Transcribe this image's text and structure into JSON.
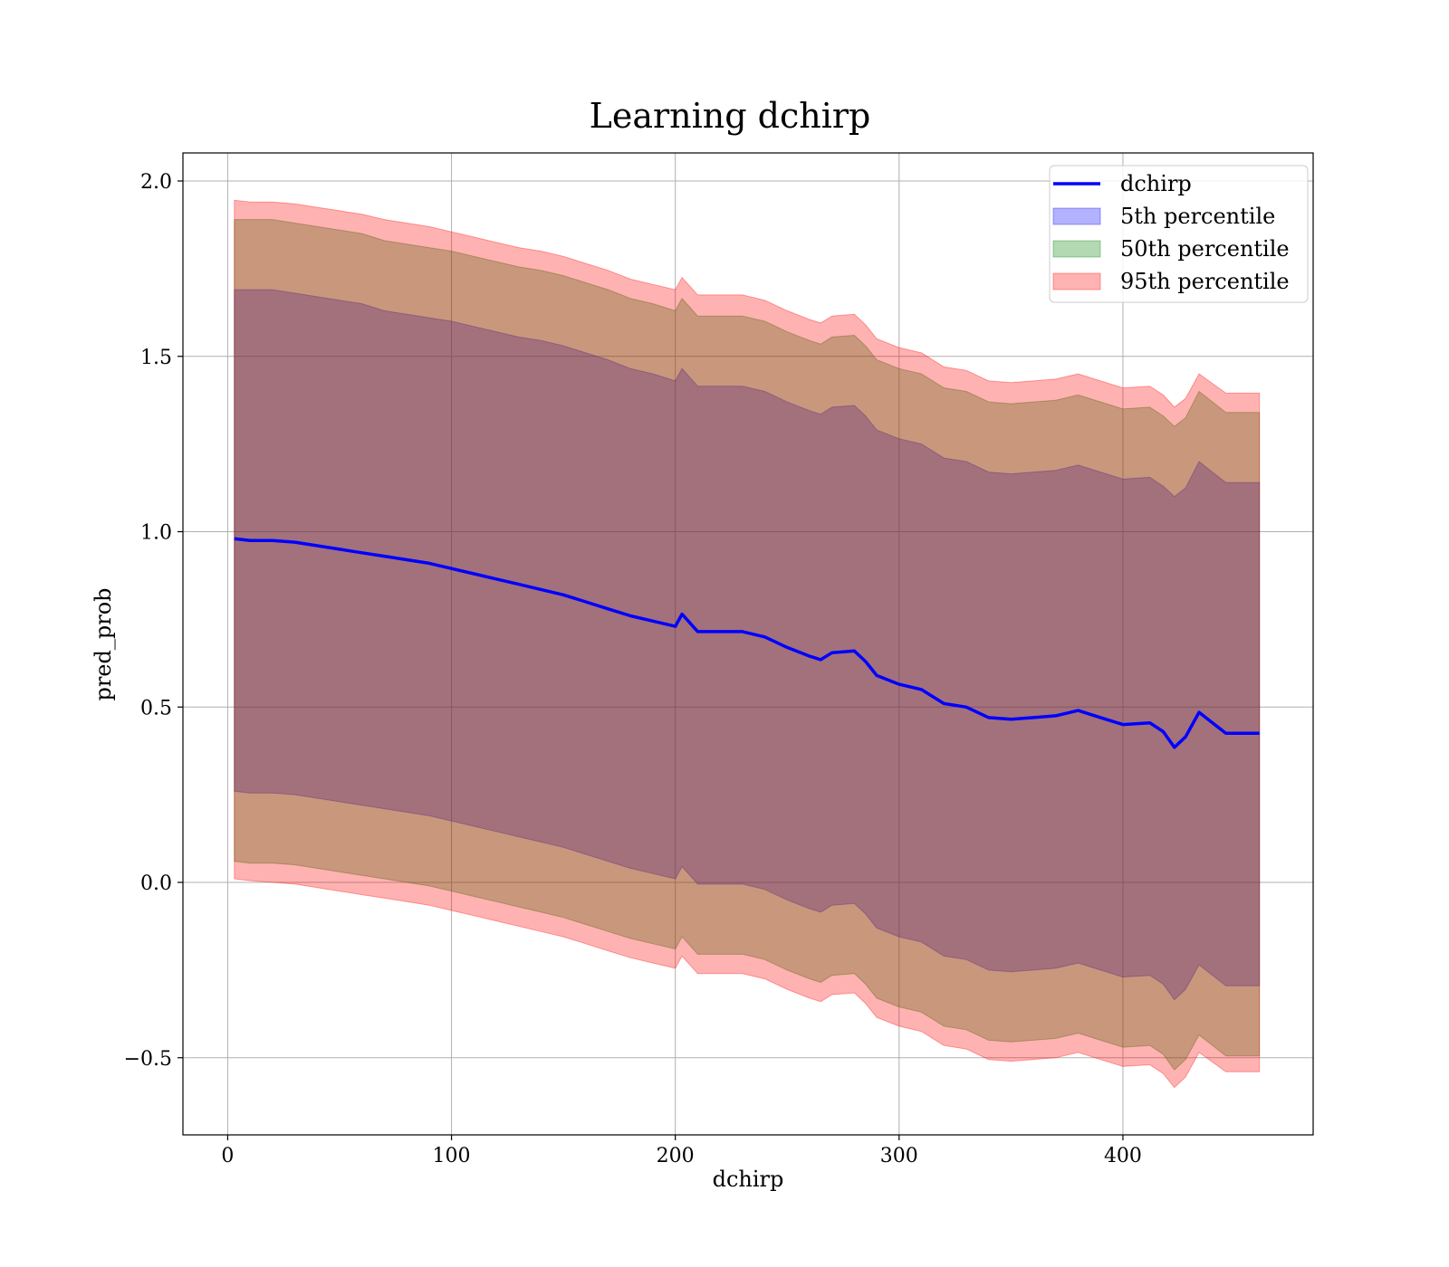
{
  "chart_data": {
    "type": "line",
    "title": "Learning dchirp",
    "xlabel": "dchirp",
    "ylabel": "pred_prob",
    "xlim": [
      -20,
      485
    ],
    "ylim": [
      -0.72,
      2.08
    ],
    "xticks": [
      0,
      100,
      200,
      300,
      400
    ],
    "xtick_labels": [
      "0",
      "100",
      "200",
      "300",
      "400"
    ],
    "yticks": [
      -0.5,
      0.0,
      0.5,
      1.0,
      1.5,
      2.0
    ],
    "ytick_labels": [
      "−0.5",
      "0.0",
      "0.5",
      "1.0",
      "1.5",
      "2.0"
    ],
    "grid": true,
    "legend_position": "top-right",
    "x": [
      3,
      10,
      20,
      30,
      40,
      50,
      60,
      70,
      80,
      90,
      100,
      110,
      120,
      130,
      140,
      150,
      160,
      170,
      180,
      190,
      200,
      203,
      210,
      220,
      230,
      240,
      250,
      260,
      265,
      270,
      280,
      285,
      290,
      300,
      310,
      320,
      330,
      340,
      350,
      360,
      370,
      380,
      390,
      400,
      412,
      418,
      423,
      428,
      434,
      446,
      461
    ],
    "series": [
      {
        "name": "dchirp",
        "kind": "line",
        "color": "#0000ff",
        "values": [
          0.98,
          0.975,
          0.975,
          0.97,
          0.96,
          0.95,
          0.94,
          0.93,
          0.92,
          0.91,
          0.895,
          0.88,
          0.865,
          0.85,
          0.835,
          0.82,
          0.8,
          0.78,
          0.76,
          0.745,
          0.73,
          0.765,
          0.715,
          0.715,
          0.715,
          0.7,
          0.67,
          0.645,
          0.635,
          0.655,
          0.66,
          0.63,
          0.59,
          0.565,
          0.55,
          0.51,
          0.5,
          0.47,
          0.465,
          0.47,
          0.475,
          0.49,
          0.47,
          0.45,
          0.455,
          0.43,
          0.385,
          0.415,
          0.485,
          0.425,
          0.425
        ]
      },
      {
        "name": "5th percentile",
        "kind": "band",
        "color": "#0000ff",
        "opacity": 0.3,
        "upper": [
          1.69,
          1.69,
          1.69,
          1.68,
          1.67,
          1.66,
          1.65,
          1.63,
          1.62,
          1.61,
          1.6,
          1.585,
          1.57,
          1.555,
          1.545,
          1.53,
          1.51,
          1.49,
          1.465,
          1.45,
          1.43,
          1.465,
          1.415,
          1.415,
          1.415,
          1.4,
          1.37,
          1.345,
          1.335,
          1.355,
          1.36,
          1.33,
          1.29,
          1.265,
          1.25,
          1.21,
          1.2,
          1.17,
          1.165,
          1.17,
          1.175,
          1.19,
          1.17,
          1.15,
          1.155,
          1.13,
          1.1,
          1.125,
          1.2,
          1.14,
          1.14
        ],
        "lower": [
          0.26,
          0.255,
          0.255,
          0.25,
          0.24,
          0.23,
          0.22,
          0.21,
          0.2,
          0.19,
          0.175,
          0.16,
          0.145,
          0.13,
          0.115,
          0.1,
          0.08,
          0.06,
          0.04,
          0.025,
          0.01,
          0.045,
          -0.005,
          -0.005,
          -0.005,
          -0.02,
          -0.05,
          -0.075,
          -0.085,
          -0.065,
          -0.06,
          -0.09,
          -0.13,
          -0.155,
          -0.17,
          -0.21,
          -0.22,
          -0.25,
          -0.255,
          -0.25,
          -0.245,
          -0.23,
          -0.25,
          -0.27,
          -0.265,
          -0.29,
          -0.335,
          -0.305,
          -0.235,
          -0.295,
          -0.295
        ]
      },
      {
        "name": "50th percentile",
        "kind": "band",
        "color": "#008000",
        "opacity": 0.3,
        "upper": [
          1.89,
          1.89,
          1.89,
          1.88,
          1.87,
          1.86,
          1.85,
          1.83,
          1.82,
          1.81,
          1.8,
          1.785,
          1.77,
          1.755,
          1.745,
          1.73,
          1.71,
          1.69,
          1.665,
          1.65,
          1.63,
          1.665,
          1.615,
          1.615,
          1.615,
          1.6,
          1.57,
          1.545,
          1.535,
          1.555,
          1.56,
          1.53,
          1.49,
          1.465,
          1.45,
          1.41,
          1.4,
          1.37,
          1.365,
          1.37,
          1.375,
          1.39,
          1.37,
          1.35,
          1.355,
          1.33,
          1.3,
          1.325,
          1.4,
          1.34,
          1.34
        ],
        "lower": [
          0.06,
          0.055,
          0.055,
          0.05,
          0.04,
          0.03,
          0.02,
          0.01,
          0.0,
          -0.01,
          -0.025,
          -0.04,
          -0.055,
          -0.07,
          -0.085,
          -0.1,
          -0.12,
          -0.14,
          -0.16,
          -0.175,
          -0.19,
          -0.155,
          -0.205,
          -0.205,
          -0.205,
          -0.22,
          -0.25,
          -0.275,
          -0.285,
          -0.265,
          -0.26,
          -0.29,
          -0.33,
          -0.355,
          -0.37,
          -0.41,
          -0.42,
          -0.45,
          -0.455,
          -0.45,
          -0.445,
          -0.43,
          -0.45,
          -0.47,
          -0.465,
          -0.49,
          -0.535,
          -0.505,
          -0.435,
          -0.495,
          -0.495
        ]
      },
      {
        "name": "95th percentile",
        "kind": "band",
        "color": "#ff0000",
        "opacity": 0.3,
        "upper": [
          1.945,
          1.94,
          1.94,
          1.935,
          1.925,
          1.915,
          1.905,
          1.89,
          1.88,
          1.87,
          1.855,
          1.84,
          1.825,
          1.81,
          1.8,
          1.785,
          1.765,
          1.745,
          1.72,
          1.705,
          1.69,
          1.725,
          1.675,
          1.675,
          1.675,
          1.66,
          1.63,
          1.605,
          1.595,
          1.615,
          1.62,
          1.59,
          1.55,
          1.525,
          1.51,
          1.47,
          1.46,
          1.43,
          1.425,
          1.43,
          1.435,
          1.45,
          1.43,
          1.41,
          1.415,
          1.39,
          1.355,
          1.38,
          1.45,
          1.395,
          1.395
        ],
        "lower": [
          0.01,
          0.005,
          0.0,
          -0.005,
          -0.015,
          -0.025,
          -0.035,
          -0.045,
          -0.055,
          -0.065,
          -0.08,
          -0.095,
          -0.11,
          -0.125,
          -0.14,
          -0.155,
          -0.175,
          -0.195,
          -0.215,
          -0.23,
          -0.245,
          -0.21,
          -0.26,
          -0.26,
          -0.26,
          -0.275,
          -0.305,
          -0.33,
          -0.34,
          -0.32,
          -0.315,
          -0.345,
          -0.385,
          -0.41,
          -0.425,
          -0.465,
          -0.475,
          -0.505,
          -0.51,
          -0.505,
          -0.5,
          -0.485,
          -0.505,
          -0.525,
          -0.52,
          -0.545,
          -0.585,
          -0.555,
          -0.485,
          -0.54,
          -0.54
        ]
      }
    ]
  }
}
